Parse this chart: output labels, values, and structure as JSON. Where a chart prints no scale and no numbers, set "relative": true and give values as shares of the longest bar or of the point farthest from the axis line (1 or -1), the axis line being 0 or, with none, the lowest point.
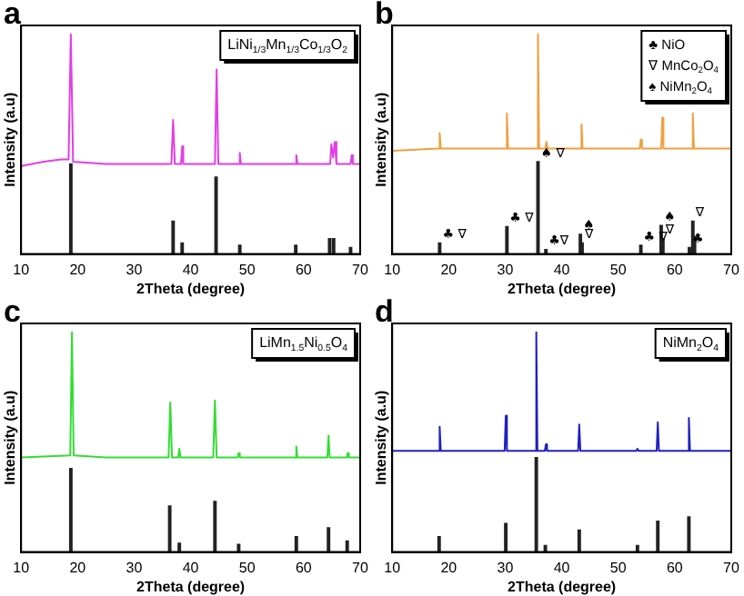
{
  "chart_data": [
    {
      "type": "line",
      "title": "a",
      "xlabel": "2Theta (degree)",
      "ylabel": "Intensity (a.u)",
      "relative": true,
      "xlim": [
        10,
        70
      ],
      "xticks": [
        10,
        20,
        30,
        40,
        50,
        60,
        70
      ],
      "tick_labels": "x",
      "annotations": [
        "LiNi$_{1/3}$Mn$_{1/3}$Co$_{1/3}$O$_{2}$"
      ],
      "series": [
        {
          "color": "#e23ee6",
          "x": [
            10,
            14,
            17,
            18.4,
            18.8,
            19.2,
            25,
            36.6,
            36.9,
            37.2,
            38.3,
            38.5,
            38.7,
            44.3,
            44.6,
            44.9,
            48.5,
            48.7,
            48.9,
            58.5,
            58.7,
            58.9,
            64.7,
            64.9,
            65.2,
            65.5,
            65.8,
            68.3,
            68.5,
            68.7,
            70
          ],
          "values": [
            0.4,
            0.42,
            0.43,
            0.43,
            1,
            0.42,
            0.41,
            0.41,
            0.61,
            0.41,
            0.41,
            0.49,
            0.41,
            0.41,
            0.84,
            0.41,
            0.41,
            0.46,
            0.41,
            0.41,
            0.45,
            0.41,
            0.41,
            0.5,
            0.44,
            0.51,
            0.41,
            0.41,
            0.45,
            0.41,
            0.41
          ]
        },
        {
          "type": "bar",
          "color": "#222222",
          "x": [
            18.8,
            36.9,
            38.5,
            44.5,
            48.7,
            58.6,
            64.6,
            65.3,
            68.3
          ],
          "values": [
            0.41,
            0.15,
            0.05,
            0.35,
            0.04,
            0.04,
            0.07,
            0.07,
            0.03
          ]
        }
      ]
    },
    {
      "type": "line",
      "title": "b",
      "xlabel": "2Theta (degree)",
      "ylabel": "Intensity (a.u)",
      "relative": true,
      "xlim": [
        10,
        70
      ],
      "xticks": [
        10,
        20,
        30,
        40,
        50,
        60,
        70
      ],
      "tick_labels": "x",
      "annotations": [
        "♣ NiO",
        "∇ MnCo$_{2}$O$_{4}$",
        "♠ NiMn$_{2}$O$_{4}$",
        {
          "text": "♣ ∇",
          "x": 18.4,
          "y": 0.05
        },
        {
          "text": "♣ ∇",
          "x": 30.3,
          "y": 0.125
        },
        {
          "text": "♠ ∇",
          "x": 35.8,
          "y": 0.42
        },
        {
          "text": "♣∇",
          "x": 37.2,
          "y": 0.02
        },
        {
          "text": "♠",
          "x": 43.3,
          "y": 0.09
        },
        {
          "text": "∇",
          "x": 43.6,
          "y": 0.05
        },
        {
          "text": "♣ ∇",
          "x": 54,
          "y": 0.04
        },
        {
          "text": "∇",
          "x": 57.9,
          "y": 0.07
        },
        {
          "text": "♠",
          "x": 57.6,
          "y": 0.13
        },
        {
          "text": "♣",
          "x": 62.6,
          "y": 0.03
        },
        {
          "text": "∇",
          "x": 63.2,
          "y": 0.15
        }
      ],
      "series": [
        {
          "color": "#f0a040",
          "x": [
            10,
            18.2,
            18.4,
            18.6,
            30.1,
            30.3,
            30.5,
            35.6,
            35.8,
            36.0,
            37.1,
            37.3,
            37.5,
            43.3,
            43.5,
            43.7,
            53.8,
            54,
            54.2,
            57.6,
            57.8,
            58,
            63,
            63.2,
            63.4,
            70
          ],
          "values": [
            0.47,
            0.48,
            0.55,
            0.48,
            0.48,
            0.64,
            0.48,
            0.48,
            1,
            0.48,
            0.48,
            0.51,
            0.48,
            0.48,
            0.59,
            0.48,
            0.48,
            0.52,
            0.48,
            0.48,
            0.62,
            0.48,
            0.48,
            0.64,
            0.48,
            0.48
          ]
        },
        {
          "type": "bar",
          "color": "#222222",
          "x": [
            18.4,
            30.3,
            35.8,
            37.2,
            43.3,
            43.6,
            54,
            57.6,
            57.9,
            62.6,
            63.2,
            63.5
          ],
          "values": [
            0.05,
            0.125,
            0.42,
            0.02,
            0.09,
            0.05,
            0.04,
            0.13,
            0.07,
            0.03,
            0.15,
            0.08
          ]
        }
      ]
    },
    {
      "type": "line",
      "title": "c",
      "xlabel": "2Theta (degree)",
      "ylabel": "Intensity (a.u)",
      "relative": true,
      "xlim": [
        10,
        70
      ],
      "xticks": [
        10,
        20,
        30,
        40,
        50,
        60,
        70
      ],
      "tick_labels": "x",
      "annotations": [
        "LiMn$_{1.5}$Ni$_{0.5}$O$_{4}$"
      ],
      "series": [
        {
          "color": "#33dd33",
          "x": [
            10,
            18.7,
            19.0,
            19.3,
            25,
            36.1,
            36.4,
            36.7,
            37.8,
            38,
            38.2,
            44.0,
            44.3,
            44.6,
            48.3,
            48.5,
            48.7,
            58.5,
            58.7,
            58.9,
            64.2,
            64.4,
            64.6,
            67.6,
            67.8,
            68,
            70
          ],
          "values": [
            0.43,
            0.44,
            1,
            0.44,
            0.43,
            0.43,
            0.68,
            0.43,
            0.43,
            0.47,
            0.43,
            0.43,
            0.69,
            0.43,
            0.43,
            0.45,
            0.43,
            0.43,
            0.48,
            0.43,
            0.43,
            0.53,
            0.43,
            0.43,
            0.45,
            0.43,
            0.43
          ]
        },
        {
          "type": "bar",
          "color": "#222222",
          "x": [
            18.8,
            36.3,
            38,
            44.3,
            48.5,
            58.7,
            64.4,
            67.7
          ],
          "values": [
            0.38,
            0.21,
            0.04,
            0.23,
            0.035,
            0.07,
            0.11,
            0.05
          ]
        }
      ]
    },
    {
      "type": "line",
      "title": "d",
      "xlabel": "2Theta (degree)",
      "ylabel": "Intensity (a.u)",
      "relative": true,
      "xlim": [
        10,
        70
      ],
      "xticks": [
        10,
        20,
        30,
        40,
        50,
        60,
        70
      ],
      "tick_labels": "x",
      "annotations": [
        "NiMn$_{2}$O$_{4}$"
      ],
      "series": [
        {
          "color": "#2020c0",
          "x": [
            10,
            18.2,
            18.4,
            18.6,
            29.9,
            30.1,
            30.3,
            35.3,
            35.5,
            35.7,
            37.0,
            37.2,
            37.4,
            42.9,
            43.1,
            43.3,
            53.2,
            53.4,
            53.6,
            56.8,
            57,
            57.2,
            62.3,
            62.5,
            62.7,
            70
          ],
          "values": [
            0.46,
            0.46,
            0.57,
            0.46,
            0.46,
            0.62,
            0.46,
            0.46,
            1,
            0.46,
            0.46,
            0.49,
            0.46,
            0.46,
            0.58,
            0.46,
            0.46,
            0.47,
            0.46,
            0.46,
            0.59,
            0.46,
            0.46,
            0.61,
            0.46,
            0.46
          ]
        },
        {
          "type": "bar",
          "color": "#222222",
          "x": [
            18.3,
            30.1,
            35.5,
            37.1,
            43.1,
            53.4,
            57,
            62.5
          ],
          "values": [
            0.07,
            0.13,
            0.43,
            0.03,
            0.1,
            0.03,
            0.14,
            0.16
          ]
        }
      ]
    }
  ]
}
